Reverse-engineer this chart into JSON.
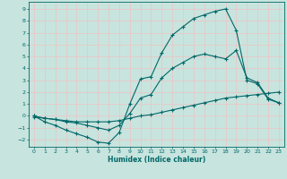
{
  "xlabel": "Humidex (Indice chaleur)",
  "bg_color": "#c8e4de",
  "grid_color": "#e8c8c8",
  "line_color": "#006868",
  "xlim": [
    -0.5,
    23.5
  ],
  "ylim": [
    -2.6,
    9.6
  ],
  "xticks": [
    0,
    1,
    2,
    3,
    4,
    5,
    6,
    7,
    8,
    9,
    10,
    11,
    12,
    13,
    14,
    15,
    16,
    17,
    18,
    19,
    20,
    21,
    22,
    23
  ],
  "yticks": [
    -2,
    -1,
    0,
    1,
    2,
    3,
    4,
    5,
    6,
    7,
    8,
    9
  ],
  "line1_x": [
    0,
    1,
    2,
    3,
    4,
    5,
    6,
    7,
    8,
    9,
    10,
    11,
    12,
    13,
    14,
    15,
    16,
    17,
    18,
    19,
    20,
    21,
    22,
    23
  ],
  "line1_y": [
    0,
    -0.5,
    -0.8,
    -1.2,
    -1.5,
    -1.8,
    -2.2,
    -2.3,
    -1.4,
    1.0,
    3.1,
    3.3,
    5.3,
    6.8,
    7.5,
    8.2,
    8.5,
    8.8,
    9.0,
    7.2,
    3.0,
    2.7,
    1.4,
    1.1
  ],
  "line2_x": [
    0,
    1,
    2,
    3,
    4,
    5,
    6,
    7,
    8,
    9,
    10,
    11,
    12,
    13,
    14,
    15,
    16,
    17,
    18,
    19,
    20,
    21,
    22,
    23
  ],
  "line2_y": [
    0,
    -0.2,
    -0.3,
    -0.5,
    -0.6,
    -0.8,
    -1.0,
    -1.2,
    -0.8,
    0.2,
    1.5,
    1.8,
    3.2,
    4.0,
    4.5,
    5.0,
    5.2,
    5.0,
    4.8,
    5.5,
    3.2,
    2.8,
    1.5,
    1.1
  ],
  "line3_x": [
    0,
    1,
    2,
    3,
    4,
    5,
    6,
    7,
    8,
    9,
    10,
    11,
    12,
    13,
    14,
    15,
    16,
    17,
    18,
    19,
    20,
    21,
    22,
    23
  ],
  "line3_y": [
    -0.1,
    -0.2,
    -0.3,
    -0.4,
    -0.5,
    -0.5,
    -0.5,
    -0.5,
    -0.4,
    -0.2,
    0.0,
    0.1,
    0.3,
    0.5,
    0.7,
    0.9,
    1.1,
    1.3,
    1.5,
    1.6,
    1.7,
    1.8,
    1.9,
    2.0
  ]
}
